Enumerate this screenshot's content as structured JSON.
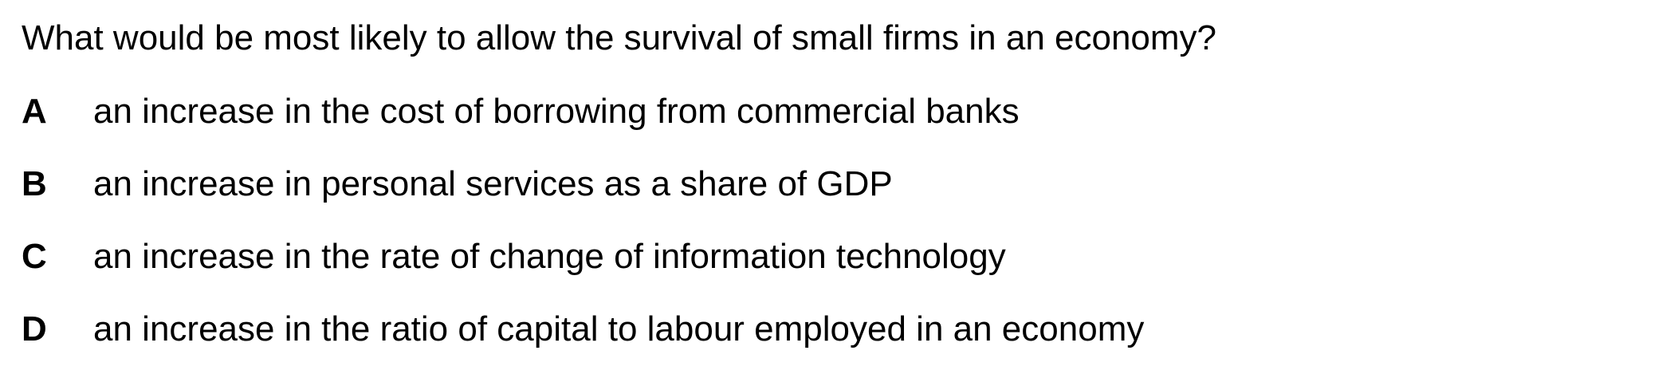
{
  "question": {
    "text": "What would be most likely to allow the survival of small firms in an economy?"
  },
  "options": [
    {
      "letter": "A",
      "text": "an increase in the cost of borrowing from commercial banks"
    },
    {
      "letter": "B",
      "text": "an increase in personal services as a share of GDP"
    },
    {
      "letter": "C",
      "text": "an increase in the rate of change of information technology"
    },
    {
      "letter": "D",
      "text": "an increase in the ratio of capital to labour employed in an economy"
    }
  ]
}
